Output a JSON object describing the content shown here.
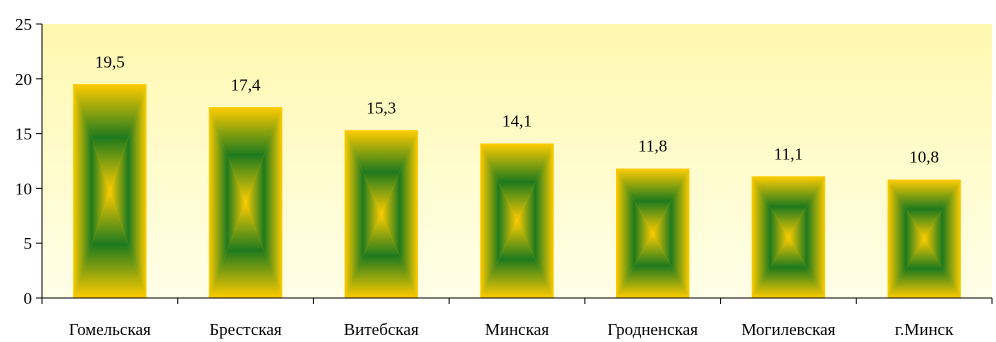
{
  "chart_data": {
    "type": "bar",
    "categories": [
      "Гомельская",
      "Брестская",
      "Витебская",
      "Минская",
      "Гродненская",
      "Могилевская",
      "г.Минск"
    ],
    "values": [
      19.5,
      17.4,
      15.3,
      14.1,
      11.8,
      11.1,
      10.8
    ],
    "value_labels": [
      "19,5",
      "17,4",
      "15,3",
      "14,1",
      "11,8",
      "11,1",
      "10,8"
    ],
    "y_ticks": [
      0,
      5,
      10,
      15,
      20,
      25
    ],
    "ylim": [
      0,
      25
    ],
    "grid": false,
    "legend": "none",
    "title": "",
    "xlabel": "",
    "ylabel": "",
    "colors": {
      "plot_bg_top": "#fff8b0",
      "plot_bg_bottom": "#ffffe8",
      "bar_edge": "#ffcc00",
      "bar_center": "#1e7a1e",
      "axis": "#000000"
    }
  }
}
